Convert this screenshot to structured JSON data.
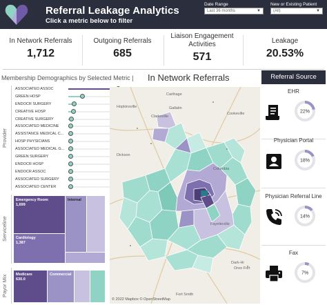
{
  "header": {
    "title": "Referral Leakage Analytics",
    "subtitle": "Click a metric below to filter",
    "filters": [
      {
        "label": "Date Range",
        "value": "Last 36 months"
      },
      {
        "label": "New or Existing Patient",
        "value": "(All)"
      }
    ]
  },
  "kpis": [
    {
      "label": "In Network Referrals",
      "value": "1,712"
    },
    {
      "label": "Outgoing Referrals",
      "value": "685"
    },
    {
      "label_line1": "Liaison Engagement",
      "label_line2": "Activities",
      "value": "571"
    },
    {
      "label": "Leakage",
      "value": "20.53%"
    }
  ],
  "section": {
    "title": "Membership Demographics by Selected Metric |",
    "metric": "In Network Referrals"
  },
  "provider_panel": {
    "label": "Provider",
    "items": [
      {
        "label": "ASSOCIATED ASSOC",
        "level": 1.0
      },
      {
        "label": "GREEN HOSP",
        "level": 0.28
      },
      {
        "label": "ENDOCR SURGERY",
        "level": 0.12
      },
      {
        "label": "CREATIVE HOSP",
        "level": 0.1
      },
      {
        "label": "CREATIVE SURGERY",
        "level": 0.06
      },
      {
        "label": "ASSOCIATED MEDICINE",
        "level": 0.05
      },
      {
        "label": "ASSISTANCE MEDICAL C...",
        "level": 0.04
      },
      {
        "label": "HOSP PHYSICIANS",
        "level": 0.03
      },
      {
        "label": "ASSOCIATED MEDICAL G...",
        "level": 0.03
      },
      {
        "label": "GREEN SURGERY",
        "level": 0.02
      },
      {
        "label": "ENDOCR HOSP",
        "level": 0.02
      },
      {
        "label": "ENDOCR ASSOC",
        "level": 0.02
      },
      {
        "label": "ASSOCIATED SURGERY",
        "level": 0.02
      },
      {
        "label": "ASSOCIATED CENTER",
        "level": 0.01
      }
    ]
  },
  "serviceline_panel": {
    "label": "Serviceline",
    "boxes": [
      {
        "name": "Emergency Room",
        "value": "1,699"
      },
      {
        "name": "Internal",
        "value": ""
      },
      {
        "name": "Cardiology",
        "value": "1,387"
      }
    ]
  },
  "payor_panel": {
    "label": "Payor Mix",
    "boxes": [
      {
        "name": "Medicare",
        "value": "630.0"
      },
      {
        "name": "Commercial",
        "value": ""
      }
    ]
  },
  "map": {
    "places": [
      "Carthage",
      "Gallatin",
      "Hopkinsville",
      "Clarksville",
      "Cookeville",
      "Dickson",
      "Columbia",
      "Fayetteville",
      "Fort Smith",
      "Dark-Hi",
      "Oreo Fort"
    ],
    "attribution": "© 2022 Mapbox © OpenStreetMap"
  },
  "referral_source": {
    "title": "Referral Source",
    "items": [
      {
        "label": "EHR",
        "percent": 22,
        "display": "22%",
        "icon": "document-icon"
      },
      {
        "label": "Physician Portal",
        "percent": 18,
        "display": "18%",
        "icon": "contact-card-icon"
      },
      {
        "label": "Physician Referral Line",
        "percent": 14,
        "display": "14%",
        "icon": "phone-icon"
      },
      {
        "label": "Fax",
        "percent": 7,
        "display": "7%",
        "icon": "printer-icon"
      }
    ]
  },
  "colors": {
    "header_bg": "#2b2e3c",
    "accent_purple": "#5e4d8a",
    "accent_teal": "#8fd3c4",
    "gauge_track": "#e4e4e8",
    "gauge_fill": "#9b92c6"
  }
}
